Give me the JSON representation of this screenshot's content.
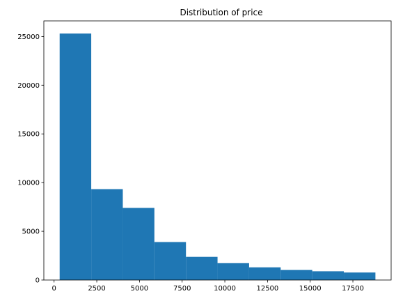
{
  "chart_data": {
    "type": "bar",
    "title": "Distribution of price",
    "xlabel": "",
    "ylabel": "",
    "bin_edges": [
      326,
      2175.3,
      4024.6,
      5873.9,
      7723.2,
      9572.5,
      11421.8,
      13271.1,
      15120.4,
      16969.7,
      18819
    ],
    "values": [
      25300,
      9330,
      7400,
      3900,
      2380,
      1730,
      1300,
      1030,
      900,
      770
    ],
    "xlim": [
      -600,
      19740
    ],
    "ylim": [
      0,
      26600
    ],
    "xticks": [
      0,
      2500,
      5000,
      7500,
      10000,
      12500,
      15000,
      17500
    ],
    "xtick_labels": [
      "0",
      "2500",
      "5000",
      "7500",
      "10000",
      "12500",
      "15000",
      "17500"
    ],
    "yticks": [
      0,
      5000,
      10000,
      15000,
      20000,
      25000
    ],
    "ytick_labels": [
      "0",
      "5000",
      "10000",
      "15000",
      "20000",
      "25000"
    ],
    "bar_color": "#1f77b4",
    "grid": false,
    "legend": "none"
  }
}
